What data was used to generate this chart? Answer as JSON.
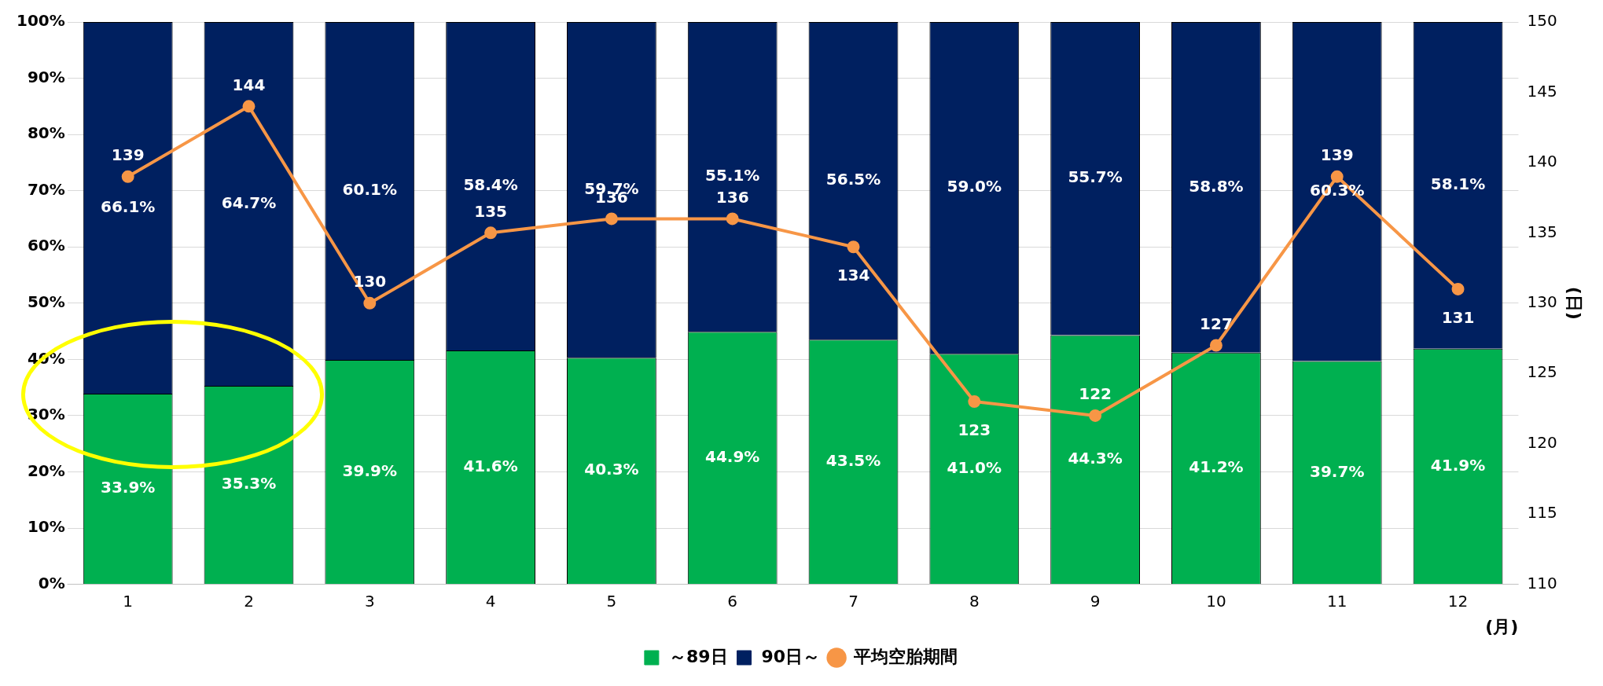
{
  "chart_data": {
    "type": "bar",
    "stacked": true,
    "categories": [
      "1",
      "2",
      "3",
      "4",
      "5",
      "6",
      "7",
      "8",
      "9",
      "10",
      "11",
      "12"
    ],
    "xlabel": "(月)",
    "y2label": "(日)",
    "series": [
      {
        "name": "～89日",
        "color": "#00b050",
        "values": [
          33.9,
          35.3,
          39.9,
          41.6,
          40.3,
          44.9,
          43.5,
          41.0,
          44.3,
          41.2,
          39.7,
          41.9
        ],
        "value_labels": [
          "33.9%",
          "35.3%",
          "39.9%",
          "41.6%",
          "40.3%",
          "44.9%",
          "43.5%",
          "41.0%",
          "44.3%",
          "41.2%",
          "39.7%",
          "41.9%"
        ]
      },
      {
        "name": "90日～",
        "color": "#002060",
        "values": [
          66.1,
          64.7,
          60.1,
          58.4,
          59.7,
          55.1,
          56.5,
          59.0,
          55.7,
          58.8,
          60.3,
          58.1
        ],
        "value_labels": [
          "66.1%",
          "64.7%",
          "60.1%",
          "58.4%",
          "59.7%",
          "55.1%",
          "56.5%",
          "59.0%",
          "55.7%",
          "58.8%",
          "60.3%",
          "58.1%"
        ]
      },
      {
        "name": "平均空胎期間",
        "type": "line",
        "axis": "y2",
        "color": "#f79646",
        "marker": "circle",
        "values": [
          139,
          144,
          130,
          135,
          136,
          136,
          134,
          123,
          122,
          127,
          139,
          131
        ],
        "value_labels": [
          "139",
          "144",
          "130",
          "135",
          "136",
          "136",
          "134",
          "123",
          "122",
          "127",
          "139",
          "131"
        ]
      }
    ],
    "ylim": [
      0,
      100
    ],
    "yticks": [
      {
        "value": 0,
        "label": "0%"
      },
      {
        "value": 10,
        "label": "10%"
      },
      {
        "value": 20,
        "label": "20%"
      },
      {
        "value": 30,
        "label": "30%"
      },
      {
        "value": 40,
        "label": "40%"
      },
      {
        "value": 50,
        "label": "50%"
      },
      {
        "value": 60,
        "label": "60%"
      },
      {
        "value": 70,
        "label": "70%"
      },
      {
        "value": 80,
        "label": "80%"
      },
      {
        "value": 90,
        "label": "90%"
      },
      {
        "value": 100,
        "label": "100%"
      }
    ],
    "y2lim": [
      110,
      150
    ],
    "y2ticks": [
      110,
      115,
      120,
      125,
      130,
      135,
      140,
      145,
      150
    ],
    "grid": "y",
    "legend": "bottom"
  }
}
